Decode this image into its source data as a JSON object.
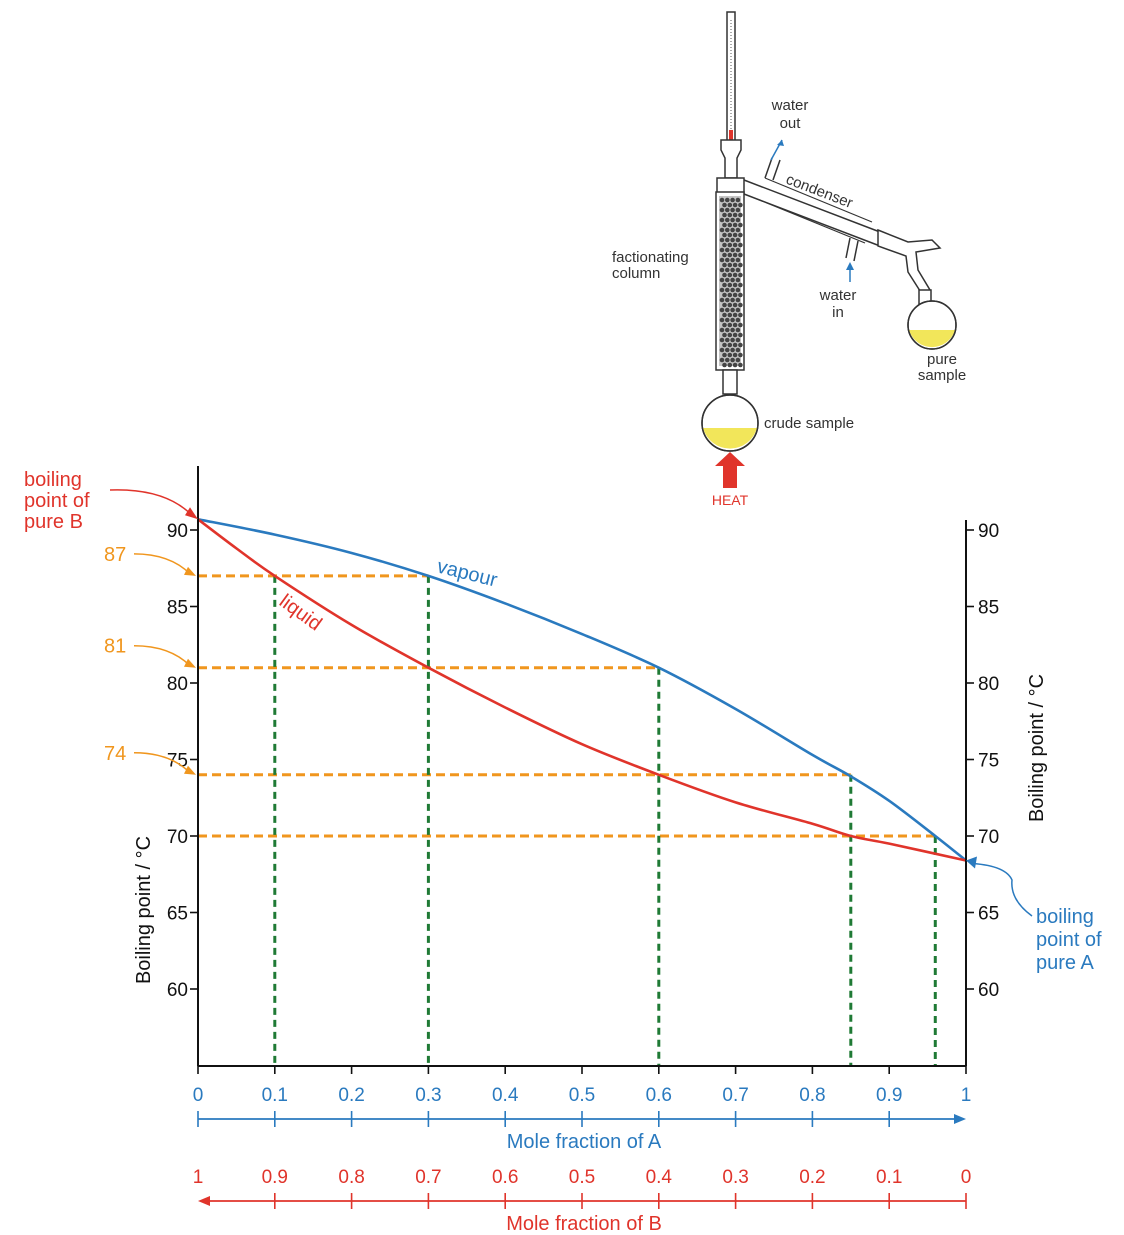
{
  "apparatus": {
    "labels": {
      "water_out": [
        "water",
        "out"
      ],
      "condenser": "condenser",
      "fractionating_column": [
        "factionating",
        "column"
      ],
      "water_in": [
        "water",
        "in"
      ],
      "pure_sample": [
        "pure",
        "sample"
      ],
      "crude_sample": "crude sample",
      "heat": "HEAT"
    },
    "colors": {
      "heat": "#e0342b",
      "sample": "#f2e65a",
      "glass": "#333333"
    }
  },
  "chart_data": {
    "type": "line",
    "xlabel_a": "Mole fraction of A",
    "xlabel_b": "Mole fraction of B",
    "ylabel_left": "Boiling point / °C",
    "ylabel_right": "Boiling point / °C",
    "xlim": [
      0,
      1
    ],
    "ylim": [
      55,
      95
    ],
    "x_ticks_a": [
      "0",
      "0.1",
      "0.2",
      "0.3",
      "0.4",
      "0.5",
      "0.6",
      "0.7",
      "0.8",
      "0.9",
      "1"
    ],
    "x_ticks_b": [
      "1",
      "0.9",
      "0.8",
      "0.7",
      "0.6",
      "0.5",
      "0.4",
      "0.3",
      "0.2",
      "0.1",
      "0"
    ],
    "y_ticks": [
      60,
      65,
      70,
      75,
      80,
      85,
      90
    ],
    "series": [
      {
        "name": "vapour",
        "color": "#2a7abf",
        "x": [
          0,
          0.1,
          0.2,
          0.3,
          0.4,
          0.5,
          0.6,
          0.7,
          0.8,
          0.85,
          0.9,
          0.96,
          1
        ],
        "y": [
          90.7,
          89.7,
          88.5,
          87.0,
          85.2,
          83.2,
          81.0,
          78.3,
          75.3,
          73.9,
          72.3,
          70.0,
          68.4
        ]
      },
      {
        "name": "liquid",
        "color": "#e0342b",
        "x": [
          0,
          0.05,
          0.1,
          0.2,
          0.3,
          0.4,
          0.5,
          0.6,
          0.7,
          0.8,
          0.85,
          0.9,
          1
        ],
        "y": [
          90.7,
          88.8,
          87.0,
          83.8,
          81.0,
          78.4,
          76.0,
          74.0,
          72.2,
          70.8,
          70.0,
          69.5,
          68.4
        ]
      }
    ],
    "construction_lines": {
      "color_horizontal": "#f0961e",
      "color_vertical": "#1f7a35",
      "horizontal": [
        {
          "y": 87,
          "x_end": 0.3
        },
        {
          "y": 81,
          "x_end": 0.6
        },
        {
          "y": 74,
          "x_end": 0.85
        },
        {
          "y": 70,
          "x_end": 0.96
        }
      ],
      "vertical": [
        {
          "x": 0.1,
          "y_top": 87
        },
        {
          "x": 0.3,
          "y_top": 87
        },
        {
          "x": 0.6,
          "y_top": 81
        },
        {
          "x": 0.85,
          "y_top": 74
        },
        {
          "x": 0.96,
          "y_top": 70
        }
      ]
    },
    "annotations": {
      "pure_b": {
        "lines": [
          "boiling",
          "point of",
          "pure B"
        ],
        "color": "#e0342b",
        "x": 0,
        "y": 90.7
      },
      "pure_a": {
        "lines": [
          "boiling",
          "point of",
          "pure A"
        ],
        "color": "#2a7abf",
        "x": 1,
        "y": 68.4
      },
      "levels": [
        {
          "text": "87",
          "y": 87
        },
        {
          "text": "81",
          "y": 81
        },
        {
          "text": "74",
          "y": 74
        }
      ],
      "levels_color": "#f0961e"
    }
  }
}
